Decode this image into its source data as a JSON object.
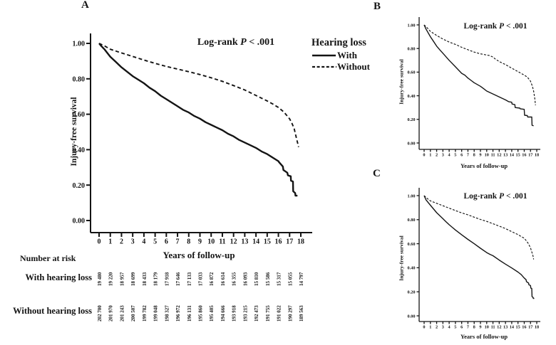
{
  "chart_data": [
    {
      "id": "A",
      "panel_label": "A",
      "type": "line",
      "subtype": "kaplan-meier",
      "annotation": {
        "prefix": "Log-rank ",
        "p": "P",
        "suffix": " < .001"
      },
      "xlabel": "Years of follow-up",
      "ylabel": "Injury-free survival",
      "xlim": [
        0,
        18
      ],
      "ylim": [
        0,
        1
      ],
      "grid": false,
      "x_ticks": [
        0,
        1,
        2,
        3,
        4,
        5,
        6,
        7,
        8,
        9,
        10,
        11,
        12,
        13,
        14,
        15,
        16,
        17,
        18
      ],
      "y_ticks": [
        "0.00",
        "0.20",
        "0.40",
        "0.60",
        "0.80",
        "1.00"
      ],
      "legend": {
        "title": "Hearing loss",
        "position": "right-of-plot",
        "items": [
          {
            "label": "With",
            "line": "solid"
          },
          {
            "label": "Without",
            "line": "dashed"
          }
        ]
      },
      "series": [
        {
          "name": "With",
          "line": "solid",
          "points": [
            [
              0,
              1.0
            ],
            [
              0.2,
              0.985
            ],
            [
              0.5,
              0.965
            ],
            [
              1,
              0.925
            ],
            [
              1.5,
              0.895
            ],
            [
              2,
              0.865
            ],
            [
              2.5,
              0.84
            ],
            [
              3,
              0.815
            ],
            [
              3.5,
              0.795
            ],
            [
              4,
              0.775
            ],
            [
              4.5,
              0.75
            ],
            [
              5,
              0.73
            ],
            [
              5.5,
              0.705
            ],
            [
              6,
              0.685
            ],
            [
              6.5,
              0.665
            ],
            [
              7,
              0.645
            ],
            [
              7.5,
              0.625
            ],
            [
              8,
              0.61
            ],
            [
              8.5,
              0.59
            ],
            [
              9,
              0.575
            ],
            [
              9.5,
              0.555
            ],
            [
              10,
              0.54
            ],
            [
              10.5,
              0.525
            ],
            [
              11,
              0.51
            ],
            [
              11.5,
              0.49
            ],
            [
              12,
              0.475
            ],
            [
              12.5,
              0.455
            ],
            [
              13,
              0.44
            ],
            [
              13.5,
              0.425
            ],
            [
              14,
              0.41
            ],
            [
              14.5,
              0.39
            ],
            [
              15,
              0.375
            ],
            [
              15.5,
              0.355
            ],
            [
              16,
              0.335
            ],
            [
              16.05,
              0.33
            ],
            [
              16.4,
              0.305
            ],
            [
              16.45,
              0.285
            ],
            [
              16.8,
              0.27
            ],
            [
              16.85,
              0.255
            ],
            [
              17.1,
              0.25
            ],
            [
              17.12,
              0.225
            ],
            [
              17.3,
              0.22
            ],
            [
              17.32,
              0.165
            ],
            [
              17.5,
              0.155
            ],
            [
              17.52,
              0.14
            ],
            [
              17.7,
              0.14
            ]
          ]
        },
        {
          "name": "Without",
          "line": "dashed",
          "points": [
            [
              0,
              1.0
            ],
            [
              0.5,
              0.985
            ],
            [
              1,
              0.967
            ],
            [
              2,
              0.946
            ],
            [
              3,
              0.926
            ],
            [
              4,
              0.906
            ],
            [
              5,
              0.887
            ],
            [
              6,
              0.87
            ],
            [
              7,
              0.855
            ],
            [
              8,
              0.84
            ],
            [
              9,
              0.824
            ],
            [
              10,
              0.806
            ],
            [
              11,
              0.786
            ],
            [
              12,
              0.762
            ],
            [
              13,
              0.737
            ],
            [
              14,
              0.706
            ],
            [
              15,
              0.675
            ],
            [
              15.5,
              0.658
            ],
            [
              16,
              0.638
            ],
            [
              16.5,
              0.612
            ],
            [
              17,
              0.574
            ],
            [
              17.2,
              0.55
            ],
            [
              17.4,
              0.52
            ],
            [
              17.6,
              0.468
            ],
            [
              17.8,
              0.415
            ]
          ]
        }
      ],
      "number_at_risk": {
        "title": "Number at risk",
        "rows": [
          {
            "label": "With hearing loss",
            "values": [
              "19 480",
              "19 220",
              "18 957",
              "18 699",
              "18 433",
              "18 179",
              "17 918",
              "17 646",
              "17 133",
              "17 033",
              "16 872",
              "16 614",
              "16 355",
              "16 093",
              "15 810",
              "15 586",
              "15 317",
              "15 055",
              "14 797"
            ]
          },
          {
            "label": "Without hearing loss",
            "values": [
              "202 700",
              "201 970",
              "201 243",
              "200 507",
              "199 782",
              "199 048",
              "198 327",
              "196 972",
              "196 131",
              "195 860",
              "195 405",
              "194 666",
              "193 918",
              "193 215",
              "192 473",
              "191 755",
              "191 022",
              "190 297",
              "189 563"
            ]
          }
        ]
      }
    },
    {
      "id": "B",
      "panel_label": "B",
      "type": "line",
      "subtype": "kaplan-meier",
      "annotation": {
        "prefix": "Log-rank ",
        "p": "P",
        "suffix": " < .001"
      },
      "xlabel": "Years of follow-up",
      "ylabel": "Injury-free survival",
      "xlim": [
        0,
        18
      ],
      "ylim": [
        0,
        1
      ],
      "grid": false,
      "x_ticks": [
        0,
        1,
        2,
        3,
        4,
        5,
        6,
        7,
        8,
        9,
        10,
        11,
        12,
        13,
        14,
        15,
        16,
        17,
        18
      ],
      "y_ticks": [
        "0.00",
        "0.20",
        "0.40",
        "0.60",
        "0.80",
        "1.00"
      ],
      "series": [
        {
          "name": "With",
          "line": "solid",
          "points": [
            [
              0,
              1.0
            ],
            [
              0.3,
              0.965
            ],
            [
              1,
              0.9
            ],
            [
              1.5,
              0.86
            ],
            [
              2,
              0.82
            ],
            [
              2.5,
              0.79
            ],
            [
              3,
              0.76
            ],
            [
              4,
              0.7
            ],
            [
              5,
              0.645
            ],
            [
              6,
              0.59
            ],
            [
              6.5,
              0.575
            ],
            [
              7,
              0.55
            ],
            [
              7.5,
              0.53
            ],
            [
              8,
              0.51
            ],
            [
              8.5,
              0.495
            ],
            [
              9,
              0.48
            ],
            [
              9.5,
              0.46
            ],
            [
              10,
              0.44
            ],
            [
              11,
              0.415
            ],
            [
              12,
              0.39
            ],
            [
              13,
              0.365
            ],
            [
              13.5,
              0.35
            ],
            [
              14,
              0.345
            ],
            [
              14.05,
              0.33
            ],
            [
              14.5,
              0.325
            ],
            [
              14.55,
              0.3
            ],
            [
              15.3,
              0.295
            ],
            [
              15.35,
              0.29
            ],
            [
              16,
              0.285
            ],
            [
              16.05,
              0.235
            ],
            [
              16.5,
              0.232
            ],
            [
              16.55,
              0.22
            ],
            [
              17.2,
              0.22
            ],
            [
              17.25,
              0.15
            ],
            [
              17.5,
              0.145
            ]
          ]
        },
        {
          "name": "Without",
          "line": "dashed",
          "points": [
            [
              0,
              1.0
            ],
            [
              0.5,
              0.975
            ],
            [
              1,
              0.945
            ],
            [
              2,
              0.91
            ],
            [
              3,
              0.88
            ],
            [
              4,
              0.855
            ],
            [
              5,
              0.835
            ],
            [
              6,
              0.81
            ],
            [
              7,
              0.79
            ],
            [
              8,
              0.77
            ],
            [
              9,
              0.755
            ],
            [
              10,
              0.745
            ],
            [
              10.5,
              0.74
            ],
            [
              11,
              0.728
            ],
            [
              11.3,
              0.714
            ],
            [
              12,
              0.69
            ],
            [
              13,
              0.664
            ],
            [
              14,
              0.634
            ],
            [
              15,
              0.604
            ],
            [
              16,
              0.575
            ],
            [
              16.5,
              0.558
            ],
            [
              17,
              0.524
            ],
            [
              17.3,
              0.48
            ],
            [
              17.5,
              0.44
            ],
            [
              17.7,
              0.37
            ],
            [
              17.8,
              0.32
            ]
          ]
        }
      ]
    },
    {
      "id": "C",
      "panel_label": "C",
      "type": "line",
      "subtype": "kaplan-meier",
      "annotation": {
        "prefix": "Log-rank ",
        "p": "P",
        "suffix": " < .001"
      },
      "xlabel": "Years of follow-up",
      "ylabel": "Injury-free survival",
      "xlim": [
        0,
        18
      ],
      "ylim": [
        0,
        1
      ],
      "grid": false,
      "x_ticks": [
        0,
        1,
        2,
        3,
        4,
        5,
        6,
        7,
        8,
        9,
        10,
        11,
        12,
        13,
        14,
        15,
        16,
        17,
        18
      ],
      "y_ticks": [
        "0.00",
        "0.20",
        "0.40",
        "0.60",
        "0.80",
        "1.00"
      ],
      "series": [
        {
          "name": "With",
          "line": "solid",
          "points": [
            [
              0,
              1.0
            ],
            [
              0.3,
              0.965
            ],
            [
              1,
              0.92
            ],
            [
              2,
              0.858
            ],
            [
              3,
              0.808
            ],
            [
              3.5,
              0.783
            ],
            [
              4,
              0.758
            ],
            [
              5,
              0.714
            ],
            [
              6,
              0.674
            ],
            [
              7,
              0.636
            ],
            [
              8,
              0.6
            ],
            [
              9,
              0.562
            ],
            [
              10,
              0.526
            ],
            [
              10.5,
              0.512
            ],
            [
              11,
              0.5
            ],
            [
              12,
              0.464
            ],
            [
              13,
              0.43
            ],
            [
              14,
              0.398
            ],
            [
              15,
              0.364
            ],
            [
              15.5,
              0.344
            ],
            [
              16,
              0.315
            ],
            [
              16.3,
              0.3
            ],
            [
              16.35,
              0.285
            ],
            [
              16.7,
              0.272
            ],
            [
              16.75,
              0.258
            ],
            [
              17,
              0.252
            ],
            [
              17.05,
              0.23
            ],
            [
              17.2,
              0.228
            ],
            [
              17.25,
              0.16
            ],
            [
              17.4,
              0.155
            ],
            [
              17.45,
              0.145
            ],
            [
              17.6,
              0.145
            ]
          ]
        },
        {
          "name": "Without",
          "line": "dashed",
          "points": [
            [
              0,
              1.0
            ],
            [
              0.5,
              0.976
            ],
            [
              1,
              0.956
            ],
            [
              2,
              0.936
            ],
            [
              3,
              0.916
            ],
            [
              4,
              0.896
            ],
            [
              5,
              0.876
            ],
            [
              6,
              0.856
            ],
            [
              7,
              0.84
            ],
            [
              8,
              0.821
            ],
            [
              9,
              0.802
            ],
            [
              10,
              0.786
            ],
            [
              11,
              0.766
            ],
            [
              12,
              0.746
            ],
            [
              13,
              0.726
            ],
            [
              14,
              0.7
            ],
            [
              15,
              0.676
            ],
            [
              15.5,
              0.66
            ],
            [
              16,
              0.646
            ],
            [
              16.3,
              0.626
            ],
            [
              16.6,
              0.606
            ],
            [
              17,
              0.566
            ],
            [
              17.2,
              0.532
            ],
            [
              17.4,
              0.5
            ],
            [
              17.5,
              0.47
            ]
          ]
        }
      ]
    }
  ]
}
